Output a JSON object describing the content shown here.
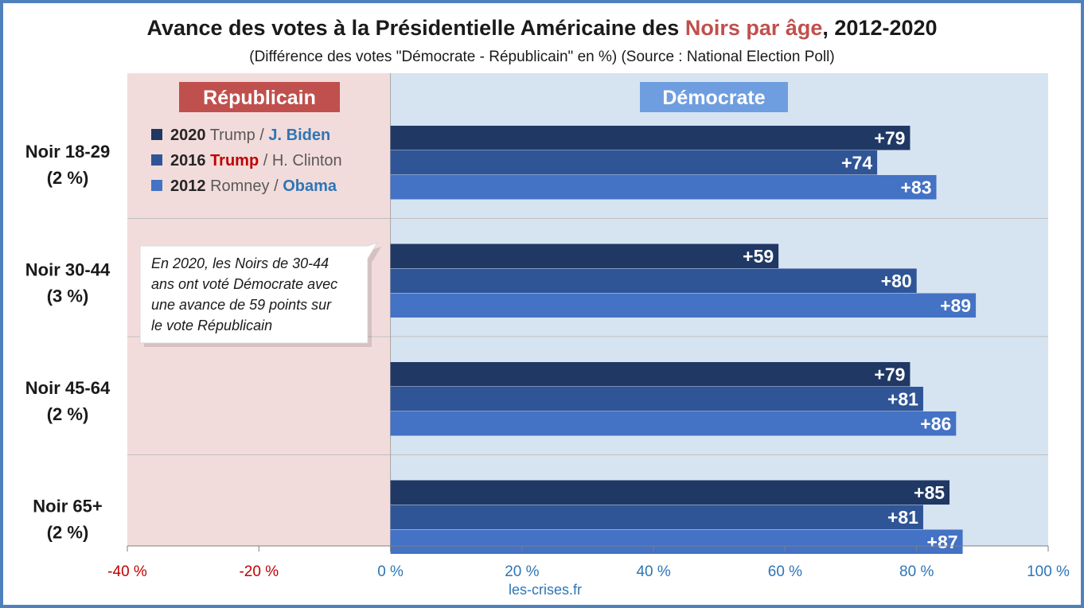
{
  "title": {
    "part1": "Avance des votes à la Présidentielle Américaine des ",
    "highlight": "Noirs par âge",
    "part2": ", 2012-2020"
  },
  "subtitle": "(Différence des votes \"Démocrate - Républicain\" en %) (Source : National Election Poll)",
  "zones": {
    "left": "Républicain",
    "right": "Démocrate"
  },
  "legend": [
    {
      "year": "2020",
      "rep": "Trump",
      "sep": " / ",
      "dem": "J. Biden",
      "winner": "dem",
      "color": "#1f3864"
    },
    {
      "year": "2016",
      "rep": "Trump",
      "sep": " / ",
      "dem": "H. Clinton",
      "winner": "rep",
      "color": "#2f5597"
    },
    {
      "year": "2012",
      "rep": "Romney",
      "sep": " / ",
      "dem": "Obama",
      "winner": "dem",
      "color": "#4472c4"
    }
  ],
  "annotation": [
    "En 2020, les Noirs de 30-44",
    "ans ont voté Démocrate avec",
    "une avance de 59 points sur",
    "le vote Républicain"
  ],
  "source": "les-crises.fr",
  "colors": {
    "rep_zone": "#f2dcdb",
    "dem_zone": "#d6e4f1",
    "rep_header": "#c0504d",
    "dem_header": "#6f9ee0",
    "neg_tick": "#c00000",
    "pos_tick": "#2e75b6",
    "frame": "#4f81bd"
  },
  "chart_data": {
    "type": "bar",
    "orientation": "horizontal",
    "categories": [
      {
        "label": "Noir 18-29",
        "share": "(2 %)"
      },
      {
        "label": "Noir 30-44",
        "share": "(3 %)"
      },
      {
        "label": "Noir 45-64",
        "share": "(2 %)"
      },
      {
        "label": "Noir 65+",
        "share": "(2 %)"
      }
    ],
    "series": [
      {
        "name": "2020",
        "color": "#1f3864",
        "values": [
          79,
          59,
          79,
          85
        ],
        "labels": [
          "+79",
          "+59",
          "+79",
          "+85"
        ]
      },
      {
        "name": "2016",
        "color": "#2f5597",
        "values": [
          74,
          80,
          81,
          81
        ],
        "labels": [
          "+74",
          "+80",
          "+81",
          "+81"
        ]
      },
      {
        "name": "2012",
        "color": "#4472c4",
        "values": [
          83,
          89,
          86,
          87
        ],
        "labels": [
          "+83",
          "+89",
          "+86",
          "+87"
        ]
      }
    ],
    "xlim": [
      -40,
      100
    ],
    "ticks": [
      {
        "value": -40,
        "label": "-40 %"
      },
      {
        "value": -20,
        "label": "-20 %"
      },
      {
        "value": 0,
        "label": "0 %"
      },
      {
        "value": 20,
        "label": "20 %"
      },
      {
        "value": 40,
        "label": "40 %"
      },
      {
        "value": 60,
        "label": "60 %"
      },
      {
        "value": 80,
        "label": "80 %"
      },
      {
        "value": 100,
        "label": "100 %"
      }
    ],
    "grid": false
  }
}
